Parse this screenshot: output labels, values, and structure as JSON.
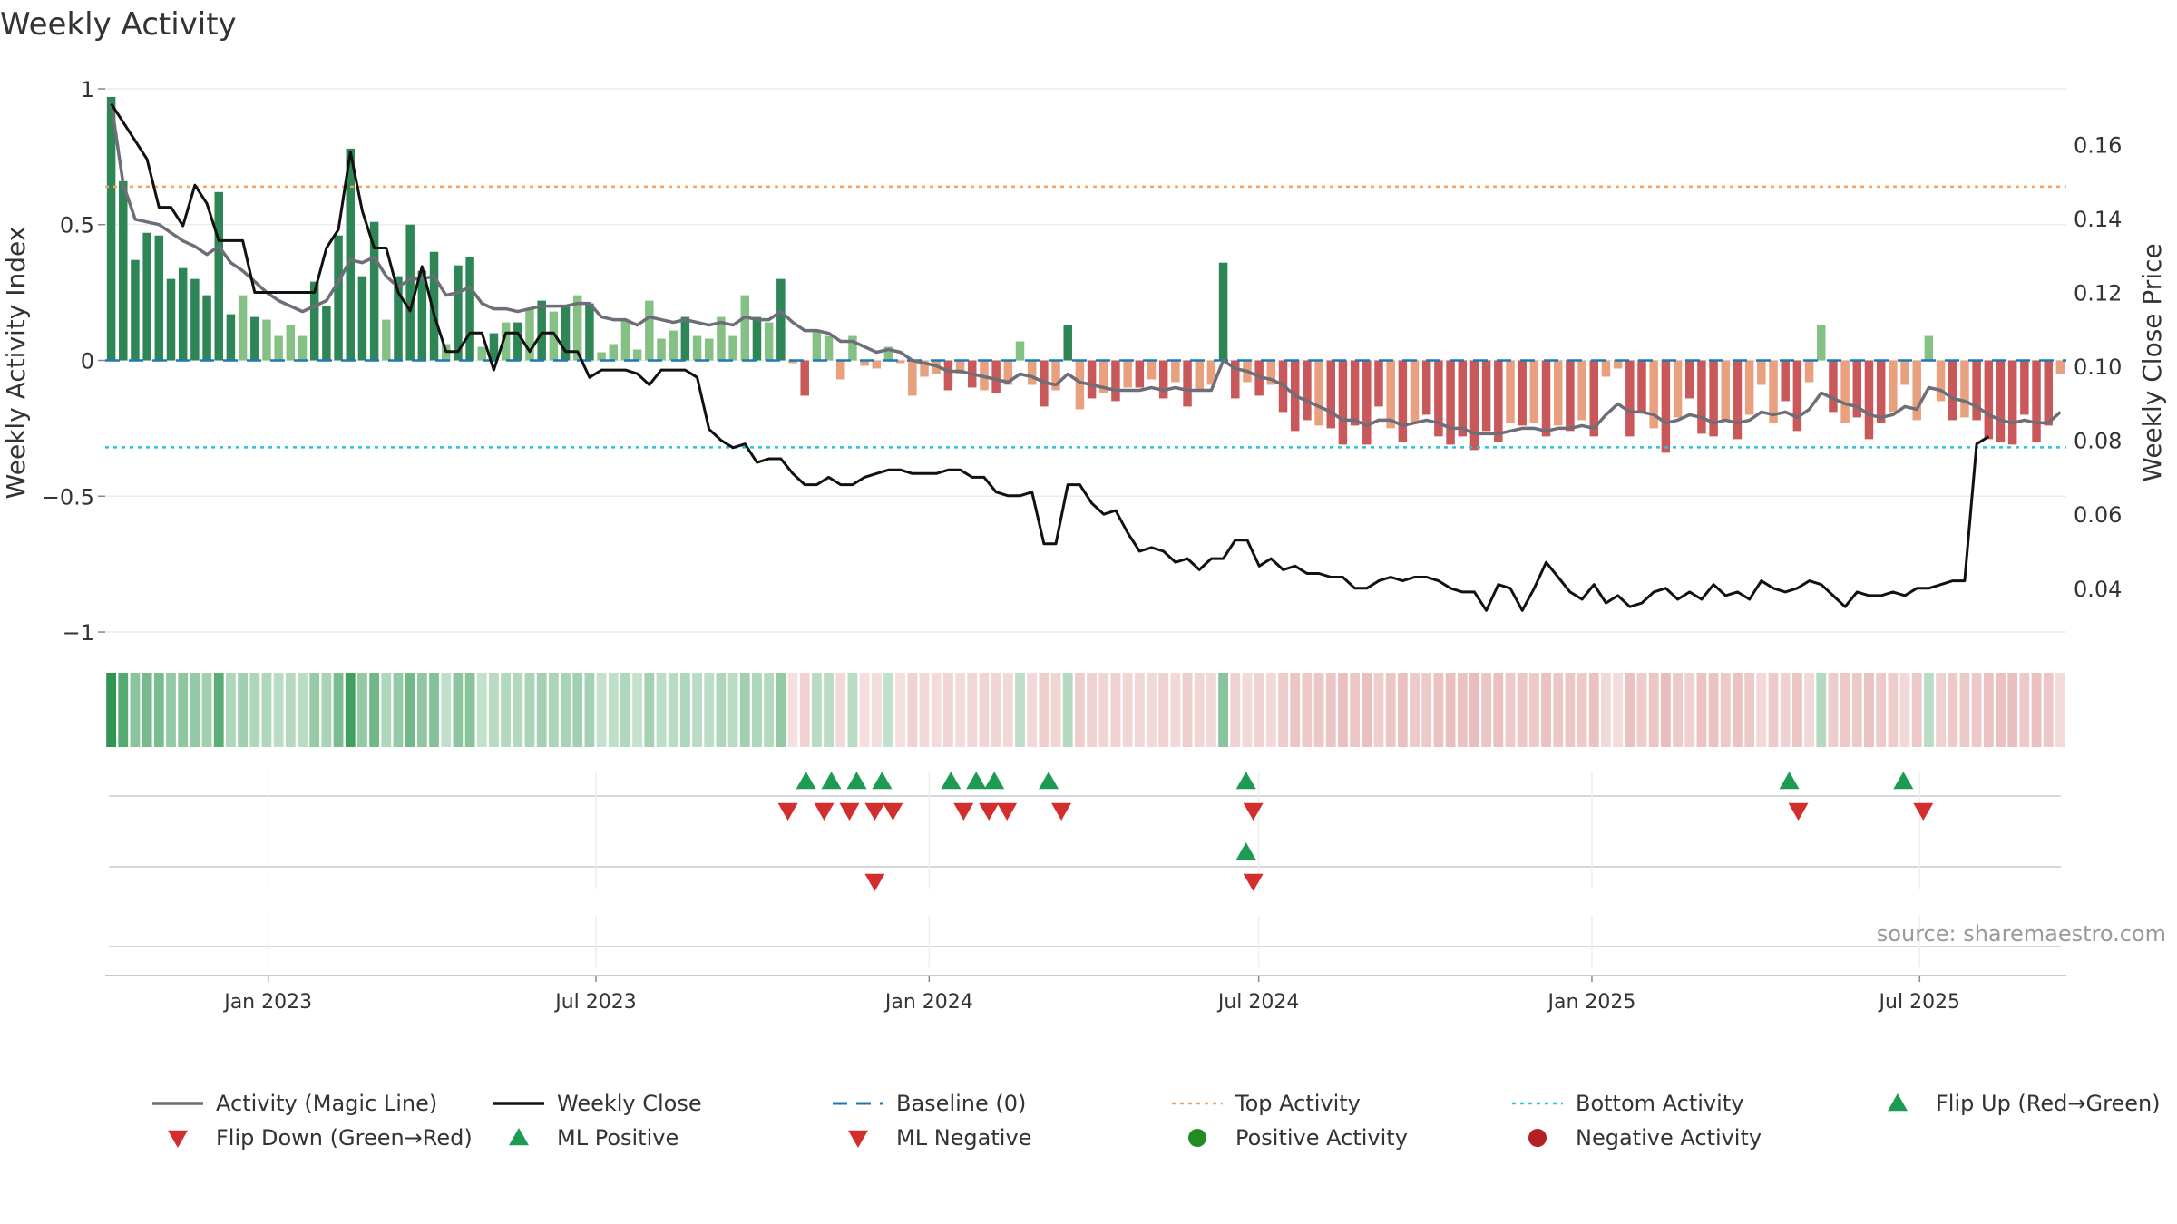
{
  "chart_data": {
    "type": "bar",
    "title": "Weekly Activity",
    "source": "source: sharemaestro.com",
    "x_start": "2022-10-03",
    "x_end": "2025-09-20",
    "x_ticks": [
      {
        "date": "2023-01-01",
        "label": "Jan 2023"
      },
      {
        "date": "2023-07-01",
        "label": "Jul 2023"
      },
      {
        "date": "2024-01-01",
        "label": "Jan 2024"
      },
      {
        "date": "2024-07-01",
        "label": "Jul 2024"
      },
      {
        "date": "2025-01-01",
        "label": "Jan 2025"
      },
      {
        "date": "2025-07-01",
        "label": "Jul 2025"
      }
    ],
    "left_axis": {
      "label": "Weekly Activity Index",
      "ylim": [
        -1.05,
        1.02
      ],
      "ticks": [
        {
          "v": 1,
          "t": "1"
        },
        {
          "v": 0.5,
          "t": "0.5"
        },
        {
          "v": 0,
          "t": "0"
        },
        {
          "v": -0.5,
          "t": "−0.5"
        },
        {
          "v": -1,
          "t": "−1"
        }
      ]
    },
    "right_axis": {
      "label": "Weekly Close Price",
      "ylim": [
        0.0245,
        0.1765
      ],
      "ticks": [
        {
          "v": 0.16,
          "t": "0.16"
        },
        {
          "v": 0.14,
          "t": "0.14"
        },
        {
          "v": 0.12,
          "t": "0.12"
        },
        {
          "v": 0.1,
          "t": "0.10"
        },
        {
          "v": 0.08,
          "t": "0.08"
        },
        {
          "v": 0.06,
          "t": "0.06"
        },
        {
          "v": 0.04,
          "t": "0.04"
        }
      ]
    },
    "top_activity": 0.64,
    "bottom_activity": -0.32,
    "activity": [
      0.97,
      0.66,
      0.37,
      0.47,
      0.46,
      0.3,
      0.34,
      0.3,
      0.24,
      0.62,
      0.17,
      0.24,
      0.16,
      0.15,
      0.09,
      0.13,
      0.09,
      0.29,
      0.2,
      0.46,
      0.78,
      0.31,
      0.51,
      0.15,
      0.31,
      0.5,
      0.33,
      0.4,
      0.06,
      0.35,
      0.38,
      0.05,
      0.1,
      0.14,
      0.14,
      0.19,
      0.22,
      0.18,
      0.2,
      0.24,
      0.21,
      0.03,
      0.06,
      0.15,
      0.04,
      0.22,
      0.08,
      0.11,
      0.16,
      0.09,
      0.08,
      0.16,
      0.09,
      0.24,
      0.16,
      0.14,
      0.3,
      -0.01,
      -0.13,
      0.11,
      0.09,
      -0.07,
      0.09,
      -0.02,
      -0.03,
      0.05,
      -0.01,
      -0.13,
      -0.06,
      -0.05,
      -0.11,
      -0.05,
      -0.1,
      -0.11,
      -0.12,
      -0.09,
      0.07,
      -0.09,
      -0.17,
      -0.11,
      0.13,
      -0.18,
      -0.14,
      -0.12,
      -0.15,
      -0.1,
      -0.1,
      -0.07,
      -0.14,
      -0.08,
      -0.17,
      -0.11,
      -0.09,
      0.36,
      -0.14,
      -0.08,
      -0.13,
      -0.09,
      -0.19,
      -0.26,
      -0.22,
      -0.24,
      -0.25,
      -0.31,
      -0.24,
      -0.31,
      -0.17,
      -0.25,
      -0.3,
      -0.23,
      -0.2,
      -0.28,
      -0.31,
      -0.28,
      -0.33,
      -0.26,
      -0.3,
      -0.23,
      -0.24,
      -0.23,
      -0.28,
      -0.24,
      -0.26,
      -0.22,
      -0.28,
      -0.06,
      -0.03,
      -0.28,
      -0.19,
      -0.25,
      -0.34,
      -0.21,
      -0.14,
      -0.27,
      -0.28,
      -0.22,
      -0.29,
      -0.2,
      -0.09,
      -0.23,
      -0.15,
      -0.26,
      -0.08,
      0.13,
      -0.19,
      -0.23,
      -0.21,
      -0.29,
      -0.23,
      -0.19,
      -0.09,
      -0.22,
      0.09,
      -0.15,
      -0.22,
      -0.21,
      -0.22,
      -0.29,
      -0.3,
      -0.31,
      -0.2,
      -0.3,
      -0.24,
      -0.05
    ],
    "magic_line": [
      0.95,
      0.65,
      0.52,
      0.51,
      0.5,
      0.47,
      0.44,
      0.42,
      0.39,
      0.42,
      0.36,
      0.33,
      0.29,
      0.25,
      0.22,
      0.2,
      0.18,
      0.2,
      0.22,
      0.29,
      0.37,
      0.36,
      0.38,
      0.31,
      0.27,
      0.3,
      0.3,
      0.31,
      0.24,
      0.25,
      0.27,
      0.21,
      0.19,
      0.19,
      0.18,
      0.19,
      0.2,
      0.2,
      0.2,
      0.21,
      0.21,
      0.16,
      0.15,
      0.15,
      0.13,
      0.16,
      0.15,
      0.14,
      0.15,
      0.14,
      0.13,
      0.14,
      0.13,
      0.16,
      0.15,
      0.15,
      0.18,
      0.14,
      0.11,
      0.11,
      0.1,
      0.07,
      0.07,
      0.05,
      0.03,
      0.04,
      0.03,
      0.0,
      -0.01,
      -0.02,
      -0.04,
      -0.04,
      -0.05,
      -0.06,
      -0.07,
      -0.08,
      -0.05,
      -0.06,
      -0.08,
      -0.09,
      -0.05,
      -0.08,
      -0.09,
      -0.1,
      -0.11,
      -0.11,
      -0.11,
      -0.1,
      -0.11,
      -0.1,
      -0.11,
      -0.11,
      -0.11,
      0.0,
      -0.03,
      -0.04,
      -0.06,
      -0.07,
      -0.09,
      -0.13,
      -0.15,
      -0.17,
      -0.19,
      -0.22,
      -0.22,
      -0.24,
      -0.22,
      -0.22,
      -0.24,
      -0.23,
      -0.22,
      -0.23,
      -0.25,
      -0.25,
      -0.27,
      -0.27,
      -0.27,
      -0.26,
      -0.25,
      -0.25,
      -0.26,
      -0.25,
      -0.25,
      -0.24,
      -0.25,
      -0.2,
      -0.16,
      -0.19,
      -0.19,
      -0.2,
      -0.23,
      -0.22,
      -0.2,
      -0.21,
      -0.23,
      -0.22,
      -0.23,
      -0.22,
      -0.19,
      -0.2,
      -0.19,
      -0.21,
      -0.18,
      -0.12,
      -0.14,
      -0.16,
      -0.17,
      -0.2,
      -0.21,
      -0.2,
      -0.17,
      -0.18,
      -0.1,
      -0.11,
      -0.14,
      -0.15,
      -0.17,
      -0.2,
      -0.22,
      -0.23,
      -0.22,
      -0.23,
      -0.23,
      -0.19
    ],
    "weekly_close": [
      0.171,
      0.166,
      0.161,
      0.156,
      0.143,
      0.143,
      0.138,
      0.149,
      0.144,
      0.134,
      0.134,
      0.134,
      0.12,
      0.12,
      0.12,
      0.12,
      0.12,
      0.12,
      0.132,
      0.137,
      0.158,
      0.142,
      0.132,
      0.132,
      0.12,
      0.115,
      0.127,
      0.114,
      0.104,
      0.104,
      0.109,
      0.109,
      0.099,
      0.109,
      0.109,
      0.104,
      0.109,
      0.109,
      0.104,
      0.104,
      0.097,
      0.099,
      0.099,
      0.099,
      0.098,
      0.095,
      0.099,
      0.099,
      0.099,
      0.097,
      0.083,
      0.08,
      0.078,
      0.079,
      0.074,
      0.075,
      0.075,
      0.071,
      0.068,
      0.068,
      0.07,
      0.068,
      0.068,
      0.07,
      0.071,
      0.072,
      0.072,
      0.071,
      0.071,
      0.071,
      0.072,
      0.072,
      0.07,
      0.07,
      0.066,
      0.065,
      0.065,
      0.066,
      0.052,
      0.052,
      0.068,
      0.068,
      0.063,
      0.06,
      0.061,
      0.055,
      0.05,
      0.051,
      0.05,
      0.047,
      0.048,
      0.045,
      0.048,
      0.048,
      0.053,
      0.053,
      0.046,
      0.048,
      0.045,
      0.046,
      0.044,
      0.044,
      0.043,
      0.043,
      0.04,
      0.04,
      0.042,
      0.043,
      0.042,
      0.043,
      0.043,
      0.042,
      0.04,
      0.039,
      0.039,
      0.034,
      0.041,
      0.04,
      0.034,
      0.04,
      0.047,
      0.043,
      0.039,
      0.037,
      0.041,
      0.036,
      0.038,
      0.035,
      0.036,
      0.039,
      0.04,
      0.037,
      0.039,
      0.037,
      0.041,
      0.038,
      0.039,
      0.037,
      0.042,
      0.04,
      0.039,
      0.04,
      0.042,
      0.041,
      0.038,
      0.035,
      0.039,
      0.038,
      0.038,
      0.039,
      0.038,
      0.04,
      0.04,
      0.041,
      0.042,
      0.042,
      0.079,
      0.081
    ],
    "flip_up": [
      "2023-10-25",
      "2023-11-08",
      "2023-11-22",
      "2023-12-06",
      "2024-01-13",
      "2024-01-27",
      "2024-02-06",
      "2024-03-07",
      "2024-06-24",
      "2025-04-20",
      "2025-06-22"
    ],
    "flip_down": [
      "2023-10-15",
      "2023-11-04",
      "2023-11-18",
      "2023-12-02",
      "2023-12-12",
      "2024-01-20",
      "2024-02-03",
      "2024-02-13",
      "2024-03-14",
      "2024-06-28",
      "2025-04-25",
      "2025-07-03"
    ],
    "ml_positive": [
      "2024-06-24"
    ],
    "ml_negative": [
      "2023-12-02",
      "2024-06-28"
    ],
    "colors": {
      "green_strong": "#2e8656",
      "green_light": "#85c085",
      "red_strong": "#c9585a",
      "red_light": "#e8a07e",
      "magic_line": "#6e6e78",
      "weekly_close": "#111111",
      "baseline": "#1f77b4",
      "top_activity": "#f2a35e",
      "bottom_activity": "#27c4dc",
      "flip_up": "#1e9b52",
      "flip_down": "#d22e2e",
      "positive_dot": "#228b22",
      "negative_dot": "#b22222",
      "grid": "#ececec",
      "text": "#333333"
    }
  },
  "legend": [
    {
      "label": "Activity (Magic Line)",
      "key": "magic"
    },
    {
      "label": "Weekly Close",
      "key": "close"
    },
    {
      "label": "Baseline (0)",
      "key": "baseline"
    },
    {
      "label": "Top Activity",
      "key": "top"
    },
    {
      "label": "Bottom Activity",
      "key": "bottom"
    },
    {
      "label": "Flip Up (Red→Green)",
      "key": "flipup"
    },
    {
      "label": "Flip Down (Green→Red)",
      "key": "flipdown"
    },
    {
      "label": "ML Positive",
      "key": "mlpos"
    },
    {
      "label": "ML Negative",
      "key": "mlneg"
    },
    {
      "label": "Positive Activity",
      "key": "posdot"
    },
    {
      "label": "Negative Activity",
      "key": "negdot"
    }
  ]
}
